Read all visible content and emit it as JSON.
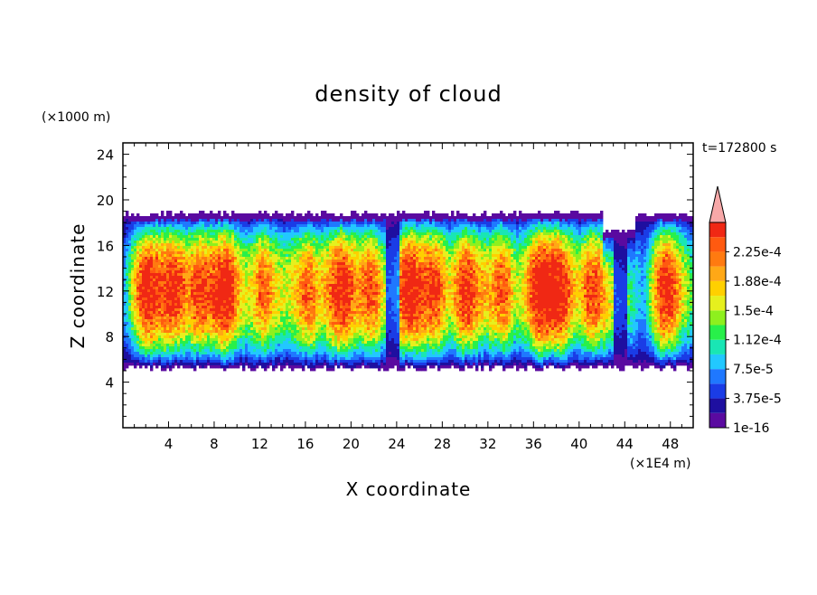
{
  "chart_data": {
    "type": "heatmap",
    "title": "density of cloud",
    "xlabel": "X coordinate",
    "ylabel": "Z coordinate",
    "x_unit": "(×1E4 m)",
    "y_unit": "(×1000 m)",
    "time_label": "t=172800 s",
    "xlim": [
      0,
      50
    ],
    "ylim": [
      0,
      25
    ],
    "x_ticks": [
      4,
      8,
      12,
      16,
      20,
      24,
      28,
      32,
      36,
      40,
      44,
      48
    ],
    "y_ticks": [
      4,
      8,
      12,
      16,
      20,
      24
    ],
    "colorbar": {
      "labels": [
        "1e-16",
        "3.75e-5",
        "7.5e-5",
        "1.12e-4",
        "1.5e-4",
        "1.88e-4",
        "2.25e-4"
      ],
      "label_levels": [
        0,
        2,
        4,
        6,
        8,
        10,
        12
      ],
      "colors": [
        "#5a0aa0",
        "#1e0fa0",
        "#1a3ce6",
        "#1f78ff",
        "#22c8ff",
        "#19e6b4",
        "#28f04a",
        "#8ef01e",
        "#e6f01e",
        "#ffd000",
        "#ffa816",
        "#ff7a10",
        "#ff5a10",
        "#f02814"
      ],
      "extend_color": "#f7a8a8"
    },
    "cloud_layer": {
      "base_z": 5,
      "top_z": 19,
      "max_density": 0.00023
    }
  }
}
